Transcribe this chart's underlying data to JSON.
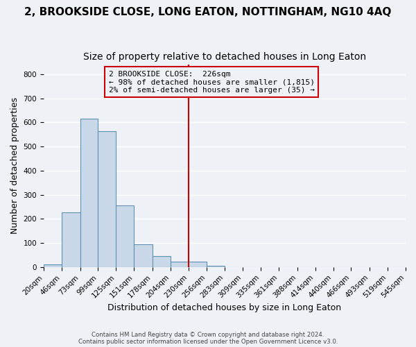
{
  "title": "2, BROOKSIDE CLOSE, LONG EATON, NOTTINGHAM, NG10 4AQ",
  "subtitle": "Size of property relative to detached houses in Long Eaton",
  "xlabel": "Distribution of detached houses by size in Long Eaton",
  "ylabel": "Number of detached properties",
  "bar_values": [
    10,
    228,
    614,
    563,
    255,
    95,
    47,
    22,
    22,
    5,
    0,
    0,
    0,
    0,
    0,
    0,
    0,
    0,
    0,
    0
  ],
  "bin_labels": [
    "20sqm",
    "46sqm",
    "73sqm",
    "99sqm",
    "125sqm",
    "151sqm",
    "178sqm",
    "204sqm",
    "230sqm",
    "256sqm",
    "283sqm",
    "309sqm",
    "335sqm",
    "361sqm",
    "388sqm",
    "414sqm",
    "440sqm",
    "466sqm",
    "493sqm",
    "519sqm",
    "545sqm"
  ],
  "bin_edges": [
    20,
    46,
    73,
    99,
    125,
    151,
    178,
    204,
    230,
    256,
    283,
    309,
    335,
    361,
    388,
    414,
    440,
    466,
    493,
    519,
    545
  ],
  "bar_color": "#c8d8e8",
  "bar_edge_color": "#6090b0",
  "vline_x": 230,
  "vline_color": "#cc0000",
  "ylim": [
    0,
    840
  ],
  "yticks": [
    0,
    100,
    200,
    300,
    400,
    500,
    600,
    700,
    800
  ],
  "annotation_title": "2 BROOKSIDE CLOSE:  226sqm",
  "annotation_line1": "← 98% of detached houses are smaller (1,815)",
  "annotation_line2": "2% of semi-detached houses are larger (35) →",
  "annotation_box_color": "#cc0000",
  "footer1": "Contains HM Land Registry data © Crown copyright and database right 2024.",
  "footer2": "Contains public sector information licensed under the Open Government Licence v3.0.",
  "background_color": "#eef2f7",
  "grid_color": "#ffffff",
  "title_fontsize": 11,
  "subtitle_fontsize": 10,
  "axis_label_fontsize": 9,
  "tick_fontsize": 7.5
}
